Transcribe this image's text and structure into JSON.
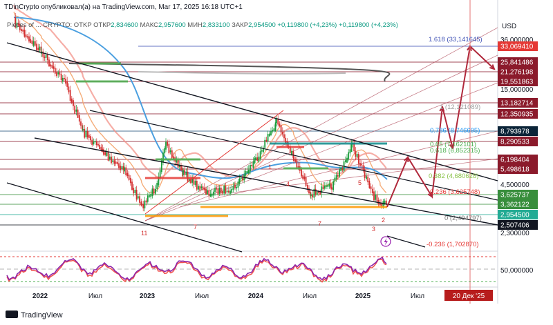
{
  "header": {
    "credit": "TDinCrypto опубликовал(а) на TradingView.com, Mar 17, 2025 16:18 UTC+1",
    "symbol": "Pieces of ... CRYPTO: OTKP",
    "open_label": "ОТКР",
    "open": "2,834600",
    "high_label": "МАКС",
    "high": "2,957600",
    "low_label": "МИН",
    "low": "2,833100",
    "close_label": "ЗАКР",
    "close": "2,954500",
    "change": "+0,119800 (+4,23%)",
    "change2": "+0,119800 (+4,23%)"
  },
  "price_axis": {
    "currency": "USD",
    "ticks": [
      "36,000000",
      "15,000000",
      "4,500000",
      "2,300000",
      "50,000000"
    ],
    "labels": [
      {
        "text": "33,069410",
        "bg": "#e53935",
        "fg": "#ffffff"
      },
      {
        "text": "25,841486",
        "bg": "#8b1a2b",
        "fg": "#ffffff"
      },
      {
        "text": "21,276198",
        "bg": "#8b1a2b",
        "fg": "#ffffff"
      },
      {
        "text": "19,551863",
        "bg": "#8b1a2b",
        "fg": "#ffffff"
      },
      {
        "text": "13,182714",
        "bg": "#8b1a2b",
        "fg": "#ffffff"
      },
      {
        "text": "12,350935",
        "bg": "#8b1a2b",
        "fg": "#ffffff"
      },
      {
        "text": "8,793978",
        "bg": "#0b2438",
        "fg": "#ffffff"
      },
      {
        "text": "8,290533",
        "bg": "#8b1a2b",
        "fg": "#ffffff"
      },
      {
        "text": "6,198404",
        "bg": "#8b1a2b",
        "fg": "#ffffff"
      },
      {
        "text": "5,498618",
        "bg": "#8b1a2b",
        "fg": "#ffffff"
      },
      {
        "text": "3,625737",
        "bg": "#388e3c",
        "fg": "#ffffff"
      },
      {
        "text": "3,362122",
        "bg": "#388e3c",
        "fg": "#ffffff"
      },
      {
        "text": "2,954500",
        "bg": "#22ab94",
        "fg": "#ffffff"
      },
      {
        "text": "2,507406",
        "bg": "#131722",
        "fg": "#ffffff"
      }
    ]
  },
  "fib_levels": [
    {
      "text": "1.618 (33,141645)",
      "color": "#3f51b5"
    },
    {
      "text": "1 (12,121089)",
      "color": "#9e9e9e"
    },
    {
      "text": "0.786 (8,746695)",
      "color": "#2196f3"
    },
    {
      "text": "0.65 (7,162101)",
      "color": "#4caf50"
    },
    {
      "text": "0.618 (6,852315)",
      "color": "#4caf50"
    },
    {
      "text": "0.382 (4,680628)",
      "color": "#8bc34a"
    },
    {
      "text": "0.236 (3,625748)",
      "color": "#e53935"
    },
    {
      "text": "0 (2,494797)",
      "color": "#777777"
    },
    {
      "text": "-0.236 (1,702870)",
      "color": "#e53935"
    }
  ],
  "time_axis": {
    "labels": [
      "2022",
      "Июл",
      "2023",
      "Июл",
      "2024",
      "Июл",
      "2025",
      "Июл"
    ],
    "cursor_label": "20 Дек '25"
  },
  "wave_labels": [
    "11",
    "7",
    "7",
    "3",
    "2",
    "4",
    "5",
    "1"
  ],
  "footer": {
    "logo_text": "TradingView"
  },
  "colors": {
    "up": "#089981",
    "down": "#e53935",
    "channel": "#131722",
    "projection": "#b0283b",
    "osc_line": "#8e24aa"
  }
}
